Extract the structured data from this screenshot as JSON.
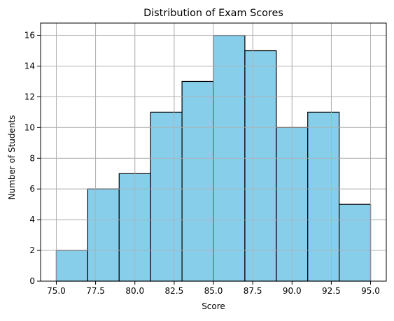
{
  "chart_data": {
    "type": "bar",
    "title": "Distribution of Exam Scores",
    "xlabel": "Score",
    "ylabel": "Number of Students",
    "bins": [
      {
        "start": 75,
        "end": 77,
        "count": 2
      },
      {
        "start": 77,
        "end": 79,
        "count": 6
      },
      {
        "start": 79,
        "end": 81,
        "count": 7
      },
      {
        "start": 81,
        "end": 83,
        "count": 11
      },
      {
        "start": 83,
        "end": 85,
        "count": 13
      },
      {
        "start": 85,
        "end": 87,
        "count": 16
      },
      {
        "start": 87,
        "end": 89,
        "count": 15
      },
      {
        "start": 89,
        "end": 91,
        "count": 10
      },
      {
        "start": 91,
        "end": 93,
        "count": 11
      },
      {
        "start": 93,
        "end": 95,
        "count": 5
      }
    ],
    "xlim": [
      74,
      96
    ],
    "ylim": [
      0,
      16.8
    ],
    "xticks": [
      75.0,
      77.5,
      80.0,
      82.5,
      85.0,
      87.5,
      90.0,
      92.5,
      95.0
    ],
    "xtick_labels": [
      "75.0",
      "77.5",
      "80.0",
      "82.5",
      "85.0",
      "87.5",
      "90.0",
      "92.5",
      "95.0"
    ],
    "yticks": [
      0,
      2,
      4,
      6,
      8,
      10,
      12,
      14,
      16
    ],
    "ytick_labels": [
      "0",
      "2",
      "4",
      "6",
      "8",
      "10",
      "12",
      "14",
      "16"
    ],
    "grid": true,
    "bar_color": "#87ceeb",
    "edge_color": "#000000",
    "grid_color": "#b0b0b0"
  }
}
